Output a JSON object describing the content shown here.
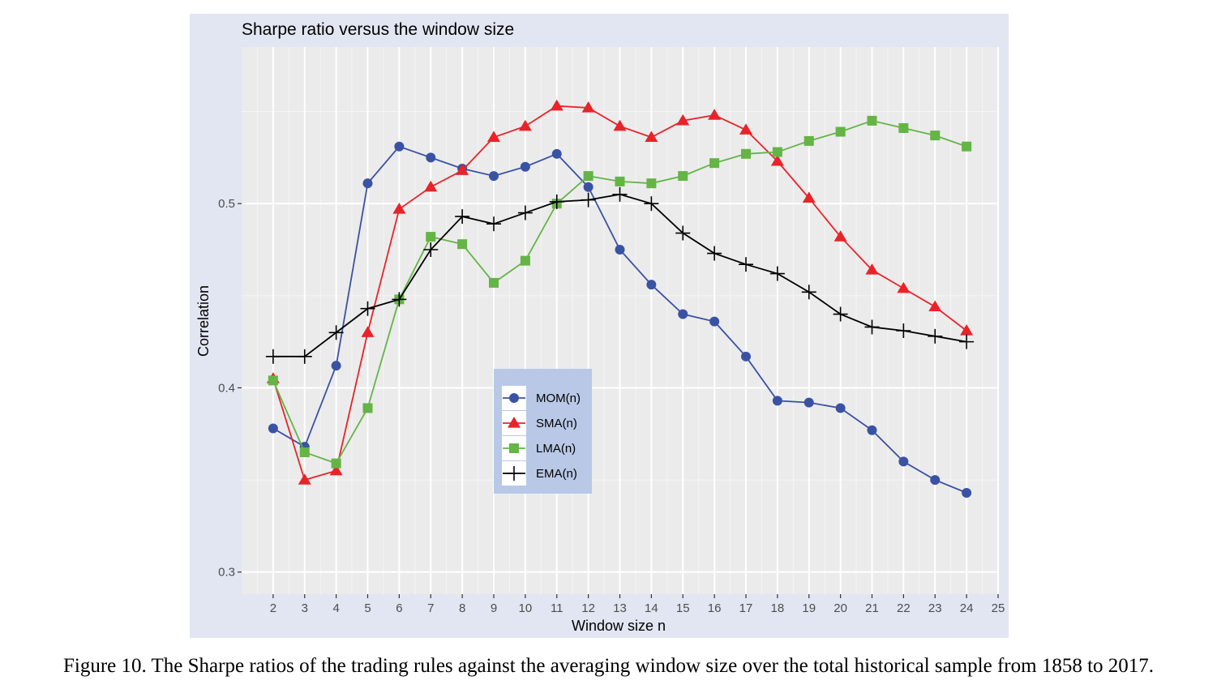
{
  "caption": "Figure 10.  The Sharpe ratios of the trading rules against the averaging window size over the total historical sample from 1858 to 2017.",
  "chart_data": {
    "type": "line",
    "title": "Sharpe ratio versus the window size",
    "xlabel": "Window size n",
    "ylabel": "Correlation",
    "xlim": [
      1,
      25
    ],
    "ylim": [
      0.288,
      0.585
    ],
    "x_ticks": [
      2,
      3,
      4,
      5,
      6,
      7,
      8,
      9,
      10,
      11,
      12,
      13,
      14,
      15,
      16,
      17,
      18,
      19,
      20,
      21,
      22,
      23,
      24,
      25
    ],
    "x_tick_labels": [
      "2",
      "3",
      "4",
      "5",
      "6",
      "7",
      "8",
      "9",
      "10",
      "11",
      "12",
      "13",
      "14",
      "15",
      "16",
      "17",
      "18",
      "19",
      "20",
      "21",
      "22",
      "23",
      "24",
      "25"
    ],
    "y_ticks": [
      0.3,
      0.4,
      0.5
    ],
    "y_tick_labels": [
      "0.3",
      "0.4",
      "0.5"
    ],
    "grid": true,
    "legend_position": "center-left",
    "x": [
      2,
      3,
      4,
      5,
      6,
      7,
      8,
      9,
      10,
      11,
      12,
      13,
      14,
      15,
      16,
      17,
      18,
      19,
      20,
      21,
      22,
      23,
      24
    ],
    "series": [
      {
        "name": "MOM(n)",
        "color": "#3a52a3",
        "marker": "circle",
        "values": [
          0.378,
          0.368,
          0.412,
          0.511,
          0.531,
          0.525,
          0.519,
          0.515,
          0.52,
          0.527,
          0.509,
          0.475,
          0.456,
          0.44,
          0.436,
          0.417,
          0.393,
          0.392,
          0.389,
          0.377,
          0.36,
          0.35,
          0.343
        ]
      },
      {
        "name": "SMA(n)",
        "color": "#e8232a",
        "marker": "triangle",
        "values": [
          0.405,
          0.35,
          0.355,
          0.43,
          0.497,
          0.509,
          0.518,
          0.536,
          0.542,
          0.553,
          0.552,
          0.542,
          0.536,
          0.545,
          0.548,
          0.54,
          0.523,
          0.503,
          0.482,
          0.464,
          0.454,
          0.444,
          0.431
        ]
      },
      {
        "name": "LMA(n)",
        "color": "#64b446",
        "marker": "square",
        "values": [
          0.404,
          0.365,
          0.359,
          0.389,
          0.448,
          0.482,
          0.478,
          0.457,
          0.469,
          0.5,
          0.515,
          0.512,
          0.511,
          0.515,
          0.522,
          0.527,
          0.528,
          0.534,
          0.539,
          0.545,
          0.541,
          0.537,
          0.531
        ]
      },
      {
        "name": "EMA(n)",
        "color": "#000000",
        "marker": "plus",
        "values": [
          0.417,
          0.417,
          0.43,
          0.443,
          0.448,
          0.475,
          0.493,
          0.489,
          0.495,
          0.501,
          0.502,
          0.505,
          0.5,
          0.484,
          0.473,
          0.467,
          0.462,
          0.452,
          0.44,
          0.433,
          0.431,
          0.428,
          0.425
        ]
      }
    ]
  }
}
